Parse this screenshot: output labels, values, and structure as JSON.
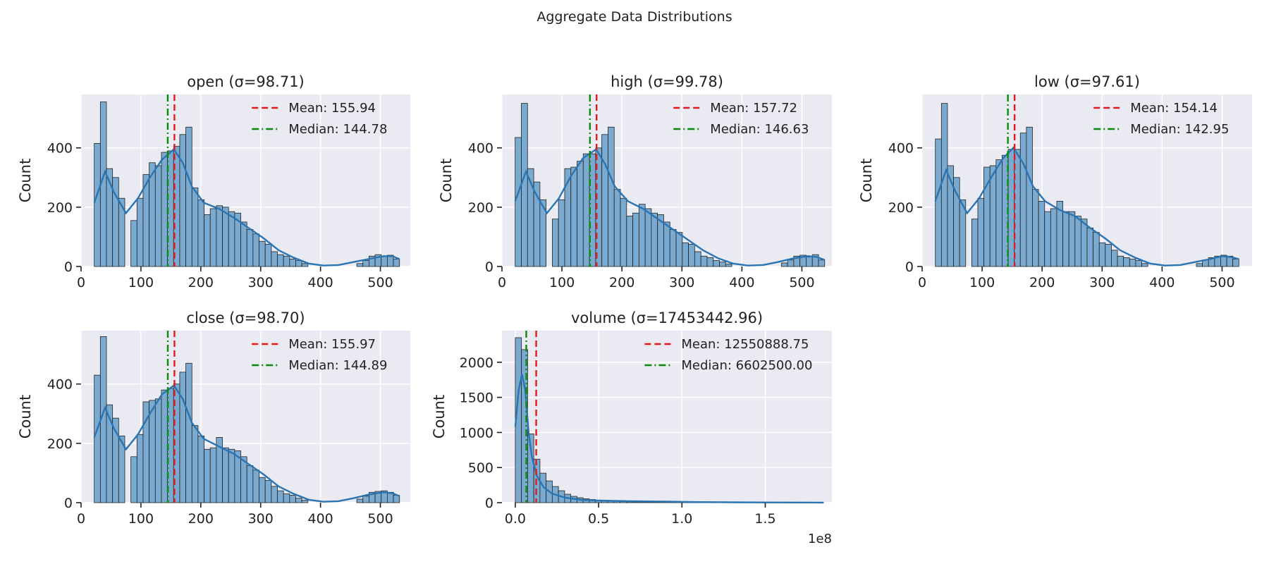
{
  "suptitle": "Aggregate Data Distributions",
  "colors": {
    "panel_background": "#eaeaf2",
    "bar_fill": "#7aaad0",
    "kde_line": "#2a74b2",
    "mean_line": "#e31a1c",
    "median_line": "#0a8a0a"
  },
  "chart_data": [
    {
      "type": "histogram",
      "title": "open (σ=98.71)",
      "ylabel": "Count",
      "xlim": [
        0,
        550
      ],
      "ylim": [
        0,
        580
      ],
      "xticks": [
        0,
        100,
        200,
        300,
        400,
        500
      ],
      "xtick_labels": [
        "0",
        "100",
        "200",
        "300",
        "400",
        "500"
      ],
      "yticks": [
        0,
        200,
        400
      ],
      "ytick_labels": [
        "0",
        "200",
        "400"
      ],
      "bins": {
        "start": 22,
        "end": 532,
        "count": 50
      },
      "counts": [
        415,
        555,
        330,
        300,
        230,
        0,
        155,
        230,
        310,
        350,
        340,
        385,
        390,
        405,
        445,
        470,
        265,
        225,
        175,
        195,
        205,
        200,
        185,
        180,
        150,
        125,
        110,
        85,
        75,
        50,
        40,
        35,
        25,
        20,
        10,
        0,
        0,
        0,
        0,
        0,
        0,
        0,
        0,
        10,
        20,
        35,
        40,
        35,
        38,
        25
      ],
      "kde": [
        [
          22,
          215
        ],
        [
          40,
          320
        ],
        [
          55,
          250
        ],
        [
          75,
          180
        ],
        [
          95,
          230
        ],
        [
          115,
          300
        ],
        [
          135,
          360
        ],
        [
          155,
          395
        ],
        [
          170,
          350
        ],
        [
          185,
          270
        ],
        [
          205,
          215
        ],
        [
          230,
          195
        ],
        [
          255,
          165
        ],
        [
          280,
          130
        ],
        [
          305,
          95
        ],
        [
          330,
          55
        ],
        [
          355,
          30
        ],
        [
          380,
          10
        ],
        [
          405,
          3
        ],
        [
          430,
          5
        ],
        [
          455,
          15
        ],
        [
          480,
          25
        ],
        [
          505,
          35
        ],
        [
          520,
          35
        ],
        [
          532,
          25
        ]
      ],
      "legend": "top-right",
      "mean": 155.94,
      "median": 144.78,
      "mean_label": "Mean: 155.94",
      "median_label": "Median: 144.78"
    },
    {
      "type": "histogram",
      "title": "high (σ=99.78)",
      "ylabel": "Count",
      "xlim": [
        0,
        550
      ],
      "ylim": [
        0,
        580
      ],
      "xticks": [
        0,
        100,
        200,
        300,
        400,
        500
      ],
      "xtick_labels": [
        "0",
        "100",
        "200",
        "300",
        "400",
        "500"
      ],
      "yticks": [
        0,
        200,
        400
      ],
      "ytick_labels": [
        "0",
        "200",
        "400"
      ],
      "bins": {
        "start": 22,
        "end": 538,
        "count": 50
      },
      "counts": [
        435,
        550,
        330,
        285,
        225,
        0,
        160,
        225,
        330,
        335,
        355,
        380,
        380,
        400,
        445,
        470,
        260,
        230,
        170,
        180,
        210,
        195,
        180,
        175,
        150,
        125,
        115,
        80,
        75,
        50,
        35,
        30,
        20,
        15,
        8,
        0,
        0,
        0,
        0,
        0,
        0,
        0,
        0,
        12,
        22,
        35,
        38,
        32,
        40,
        22
      ],
      "kde": [
        [
          22,
          220
        ],
        [
          40,
          320
        ],
        [
          55,
          250
        ],
        [
          75,
          180
        ],
        [
          95,
          230
        ],
        [
          115,
          305
        ],
        [
          135,
          365
        ],
        [
          157,
          395
        ],
        [
          172,
          345
        ],
        [
          188,
          270
        ],
        [
          210,
          220
        ],
        [
          235,
          195
        ],
        [
          260,
          160
        ],
        [
          285,
          125
        ],
        [
          310,
          90
        ],
        [
          335,
          55
        ],
        [
          360,
          28
        ],
        [
          385,
          10
        ],
        [
          410,
          3
        ],
        [
          435,
          5
        ],
        [
          460,
          15
        ],
        [
          485,
          27
        ],
        [
          510,
          35
        ],
        [
          525,
          32
        ],
        [
          538,
          22
        ]
      ],
      "legend": "top-right",
      "mean": 157.72,
      "median": 146.63,
      "mean_label": "Mean: 157.72",
      "median_label": "Median: 146.63"
    },
    {
      "type": "histogram",
      "title": "low (σ=97.61)",
      "ylabel": "Count",
      "xlim": [
        0,
        550
      ],
      "ylim": [
        0,
        580
      ],
      "xticks": [
        0,
        100,
        200,
        300,
        400,
        500
      ],
      "xtick_labels": [
        "0",
        "100",
        "200",
        "300",
        "400",
        "500"
      ],
      "yticks": [
        0,
        200,
        400
      ],
      "ytick_labels": [
        "0",
        "200",
        "400"
      ],
      "bins": {
        "start": 22,
        "end": 528,
        "count": 50
      },
      "counts": [
        430,
        550,
        340,
        300,
        225,
        0,
        160,
        230,
        335,
        340,
        360,
        375,
        395,
        395,
        450,
        470,
        260,
        220,
        185,
        195,
        220,
        185,
        185,
        170,
        160,
        130,
        115,
        80,
        75,
        55,
        35,
        30,
        25,
        20,
        10,
        0,
        0,
        0,
        0,
        0,
        0,
        0,
        0,
        10,
        22,
        30,
        35,
        38,
        35,
        25
      ],
      "kde": [
        [
          22,
          220
        ],
        [
          40,
          325
        ],
        [
          55,
          255
        ],
        [
          75,
          180
        ],
        [
          95,
          230
        ],
        [
          115,
          300
        ],
        [
          135,
          365
        ],
        [
          152,
          400
        ],
        [
          168,
          350
        ],
        [
          185,
          270
        ],
        [
          205,
          220
        ],
        [
          230,
          190
        ],
        [
          255,
          170
        ],
        [
          280,
          130
        ],
        [
          305,
          95
        ],
        [
          330,
          55
        ],
        [
          355,
          30
        ],
        [
          380,
          10
        ],
        [
          405,
          3
        ],
        [
          430,
          5
        ],
        [
          455,
          15
        ],
        [
          480,
          25
        ],
        [
          500,
          35
        ],
        [
          515,
          32
        ],
        [
          528,
          25
        ]
      ],
      "legend": "top-right",
      "mean": 154.14,
      "median": 142.95,
      "mean_label": "Mean: 154.14",
      "median_label": "Median: 142.95"
    },
    {
      "type": "histogram",
      "title": "close (σ=98.70)",
      "ylabel": "Count",
      "xlim": [
        0,
        550
      ],
      "ylim": [
        0,
        580
      ],
      "xticks": [
        0,
        100,
        200,
        300,
        400,
        500
      ],
      "xtick_labels": [
        "0",
        "100",
        "200",
        "300",
        "400",
        "500"
      ],
      "yticks": [
        0,
        200,
        400
      ],
      "ytick_labels": [
        "0",
        "200",
        "400"
      ],
      "bins": {
        "start": 22,
        "end": 532,
        "count": 50
      },
      "counts": [
        430,
        560,
        330,
        285,
        225,
        0,
        155,
        230,
        340,
        345,
        350,
        380,
        385,
        400,
        440,
        470,
        260,
        225,
        180,
        185,
        220,
        185,
        180,
        175,
        155,
        125,
        110,
        85,
        75,
        55,
        40,
        30,
        25,
        15,
        8,
        0,
        0,
        0,
        0,
        0,
        0,
        0,
        0,
        12,
        22,
        35,
        38,
        40,
        35,
        25
      ],
      "kde": [
        [
          22,
          220
        ],
        [
          40,
          320
        ],
        [
          55,
          250
        ],
        [
          75,
          180
        ],
        [
          95,
          230
        ],
        [
          115,
          300
        ],
        [
          135,
          365
        ],
        [
          155,
          395
        ],
        [
          170,
          350
        ],
        [
          185,
          270
        ],
        [
          205,
          215
        ],
        [
          230,
          190
        ],
        [
          255,
          165
        ],
        [
          280,
          130
        ],
        [
          305,
          95
        ],
        [
          330,
          55
        ],
        [
          355,
          30
        ],
        [
          380,
          10
        ],
        [
          405,
          3
        ],
        [
          430,
          5
        ],
        [
          455,
          15
        ],
        [
          480,
          27
        ],
        [
          505,
          35
        ],
        [
          520,
          32
        ],
        [
          532,
          22
        ]
      ],
      "legend": "top-right",
      "mean": 155.97,
      "median": 144.89,
      "mean_label": "Mean: 155.97",
      "median_label": "Median: 144.89"
    },
    {
      "type": "histogram",
      "title": "volume (σ=17453442.96)",
      "ylabel": "Count",
      "x_offset_label": "1e8",
      "xlim": [
        -0.08,
        1.9
      ],
      "ylim": [
        0,
        2450
      ],
      "xticks": [
        0,
        0.5,
        1.0,
        1.5
      ],
      "xtick_labels": [
        "0.0",
        "0.5",
        "1.0",
        "1.5"
      ],
      "yticks": [
        0,
        500,
        1000,
        1500,
        2000
      ],
      "ytick_labels": [
        "0",
        "500",
        "1000",
        "1500",
        "2000"
      ],
      "bins": {
        "start": 0.0,
        "end": 1.85,
        "count": 50
      },
      "counts": [
        2350,
        2180,
        980,
        620,
        420,
        310,
        230,
        170,
        120,
        90,
        70,
        55,
        45,
        35,
        30,
        25,
        20,
        15,
        12,
        10,
        9,
        8,
        7,
        6,
        5,
        4,
        4,
        3,
        3,
        2,
        2,
        2,
        2,
        1,
        1,
        1,
        1,
        1,
        1,
        1,
        1,
        1,
        1,
        1,
        1,
        1,
        1,
        1,
        1,
        1
      ],
      "kde": [
        [
          0.0,
          1080
        ],
        [
          0.02,
          1600
        ],
        [
          0.04,
          1830
        ],
        [
          0.06,
          1600
        ],
        [
          0.08,
          1000
        ],
        [
          0.1,
          650
        ],
        [
          0.13,
          380
        ],
        [
          0.17,
          220
        ],
        [
          0.22,
          130
        ],
        [
          0.3,
          70
        ],
        [
          0.4,
          40
        ],
        [
          0.5,
          30
        ],
        [
          0.7,
          20
        ],
        [
          0.9,
          15
        ],
        [
          1.1,
          8
        ],
        [
          1.3,
          5
        ],
        [
          1.5,
          3
        ],
        [
          1.7,
          2
        ],
        [
          1.85,
          1
        ]
      ],
      "legend": "top-right",
      "mean": 0.1255,
      "median": 0.066,
      "mean_label": "Mean: 12550888.75",
      "median_label": "Median: 6602500.00"
    }
  ]
}
